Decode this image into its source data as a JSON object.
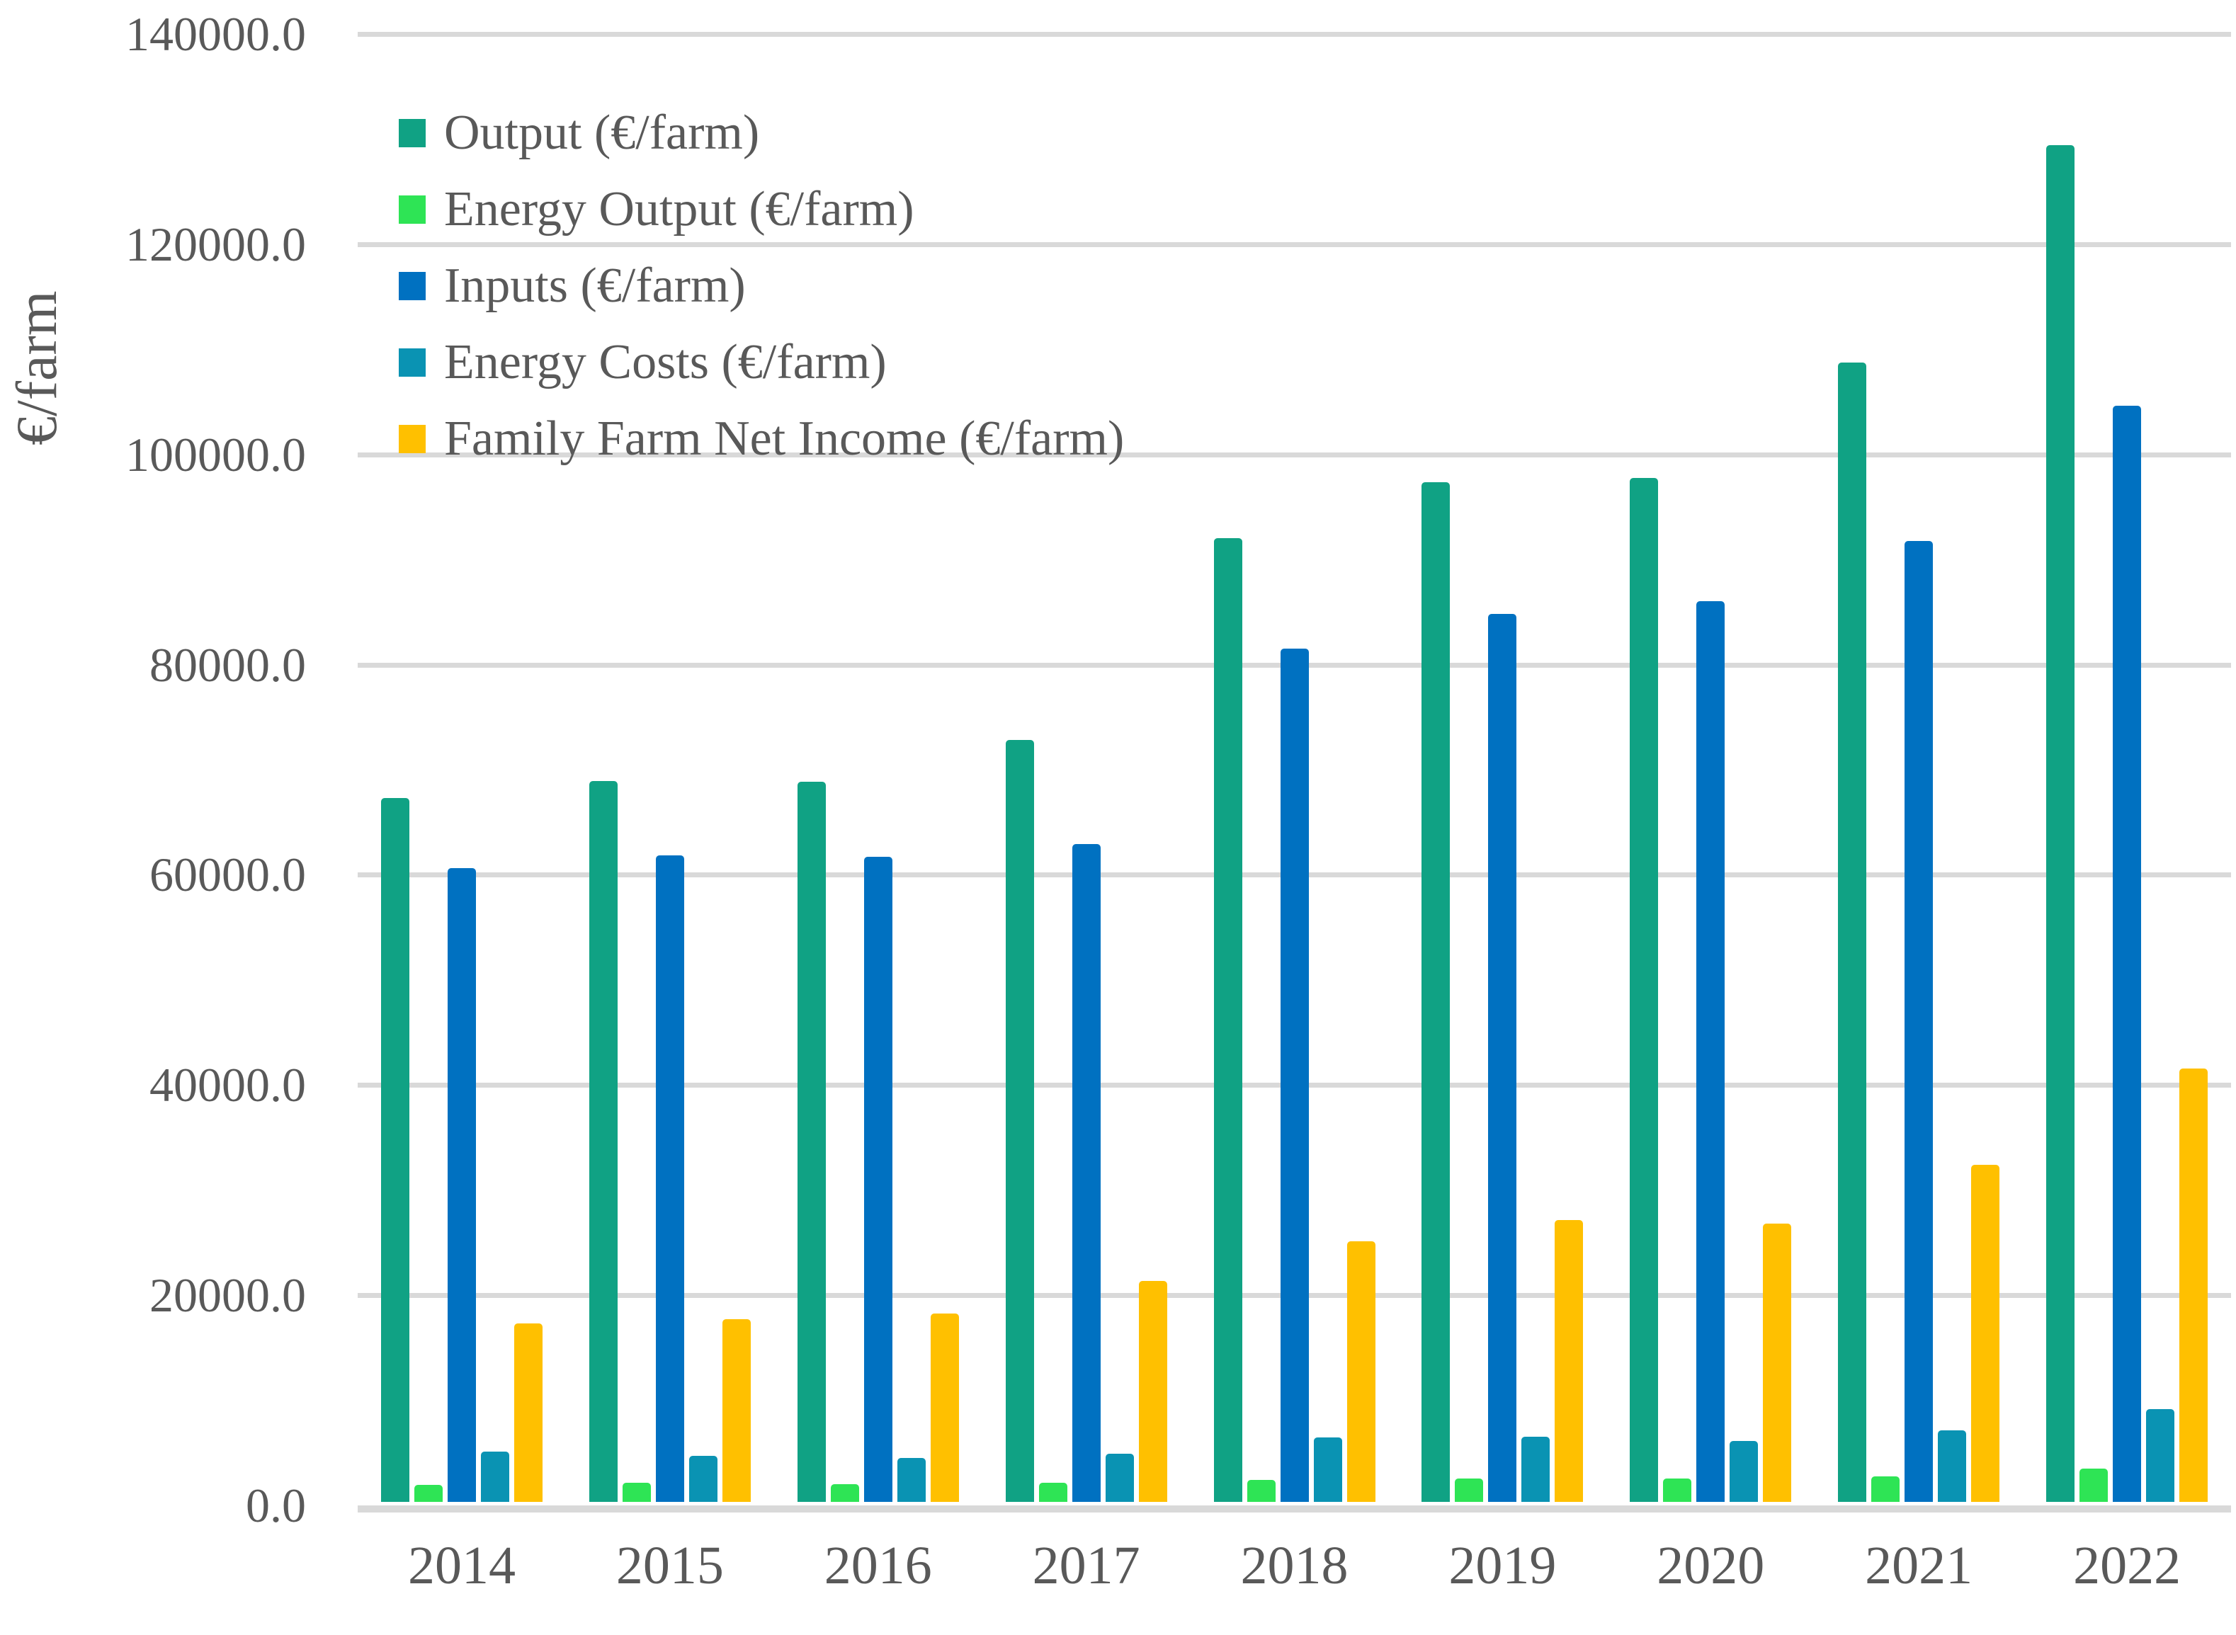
{
  "chart_data": {
    "type": "bar",
    "title": "",
    "xlabel": "",
    "ylabel": "€/farm",
    "categories": [
      "2014",
      "2015",
      "2016",
      "2017",
      "2018",
      "2019",
      "2020",
      "2021",
      "2022"
    ],
    "series": [
      {
        "name": "Output (€/farm)",
        "color": "#10A284",
        "values": [
          67000,
          68600,
          68500,
          72500,
          91700,
          97000,
          97400,
          108400,
          129100
        ]
      },
      {
        "name": "Energy Output (€/farm)",
        "color": "#2EE455",
        "values": [
          1600,
          1800,
          1700,
          1800,
          2100,
          2200,
          2200,
          2400,
          3200
        ]
      },
      {
        "name": "Inputs (€/farm)",
        "color": "#0071C1",
        "values": [
          60300,
          61500,
          61400,
          62600,
          81200,
          84500,
          85700,
          91400,
          104300
        ]
      },
      {
        "name": "Energy Costs (€/farm)",
        "color": "#0A93B3",
        "values": [
          4800,
          4400,
          4200,
          4600,
          6100,
          6200,
          5800,
          6800,
          8800
        ]
      },
      {
        "name": "Family Farm Net Income (€/farm)",
        "color": "#FFC000",
        "values": [
          17000,
          17400,
          17900,
          21000,
          24800,
          26800,
          26500,
          32100,
          41200
        ]
      }
    ],
    "ylim": [
      0,
      140000
    ],
    "ytick_step": 20000,
    "ytick_labels": [
      "0.0",
      "20000.0",
      "40000.0",
      "60000.0",
      "80000.0",
      "100000.0",
      "120000.0",
      "140000.0"
    ],
    "grid": "horizontal-only",
    "legend_position": "inside-top-left",
    "gridline_color": "#D9D9D9",
    "text_color": "#595959",
    "background_color": "#FFFFFF"
  }
}
